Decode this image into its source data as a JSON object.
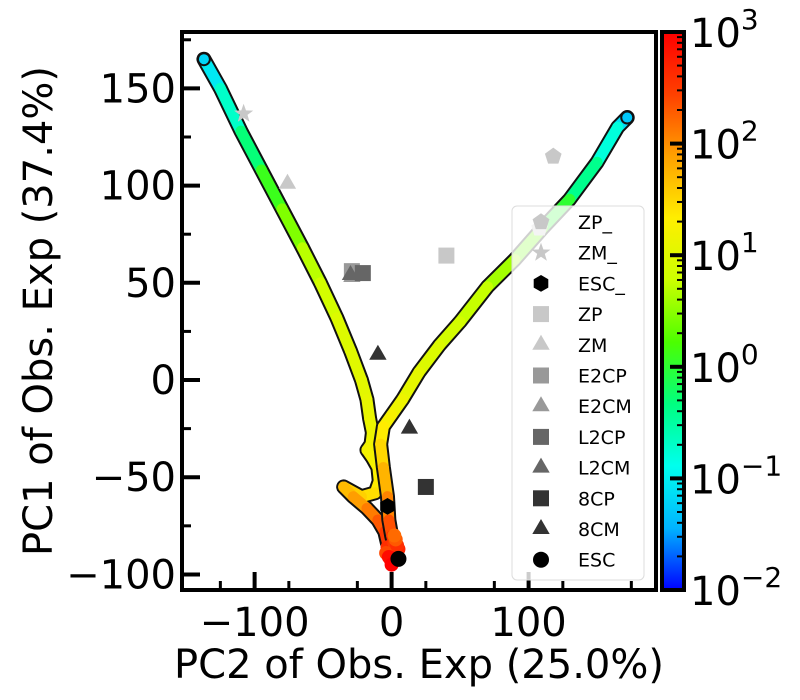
{
  "chart_data": {
    "type": "scatter",
    "title": "",
    "xlabel": "PC2 of Obs. Exp (25.0%)",
    "ylabel": "PC1 of Obs. Exp (37.4%)",
    "xlim": [
      -153,
      193
    ],
    "ylim": [
      -108,
      179
    ],
    "xticks": [
      -100,
      0,
      100
    ],
    "xtick_labels": [
      "−100",
      "0",
      "100"
    ],
    "yticks": [
      -100,
      -50,
      0,
      50,
      100,
      150
    ],
    "ytick_labels": [
      "−100",
      "−50",
      "0",
      "50",
      "100",
      "150"
    ],
    "grid": false,
    "legend_position": "lower-right",
    "colorbar": {
      "scale": "log",
      "range": [
        0.01,
        1000
      ],
      "colormap": [
        "#0000ff",
        "#00b4ff",
        "#00ffee",
        "#00ff80",
        "#4cff00",
        "#ccff00",
        "#ffee00",
        "#ffa000",
        "#ff4000",
        "#ff0000"
      ],
      "tick_values": [
        0.01,
        0.1,
        1,
        10,
        100,
        1000
      ],
      "tick_labels": [
        {
          "base": "10",
          "exp": "−2"
        },
        {
          "base": "10",
          "exp": "−1"
        },
        {
          "base": "10",
          "exp": "0"
        },
        {
          "base": "10",
          "exp": "1"
        },
        {
          "base": "10",
          "exp": "2"
        },
        {
          "base": "10",
          "exp": "3"
        }
      ]
    },
    "trajectory_branch_1": {
      "x": [
        -137,
        -125,
        -110,
        -95,
        -80,
        -65,
        -52,
        -40,
        -30,
        -22,
        -18,
        -16,
        -14,
        -15,
        -18,
        -14,
        -10,
        -9,
        -12,
        -22,
        -35,
        -28,
        -18,
        -10,
        -5,
        -3
      ],
      "y": [
        165,
        150,
        128,
        108,
        88,
        68,
        50,
        32,
        15,
        0,
        -10,
        -20,
        -27,
        -33,
        -36,
        -40,
        -45,
        -52,
        -58,
        -60,
        -55,
        -60,
        -66,
        -72,
        -78,
        -84
      ],
      "color_log10": [
        -1.2,
        -0.9,
        -0.5,
        -0.1,
        0.3,
        0.6,
        0.8,
        0.9,
        1.0,
        1.0,
        1.05,
        1.1,
        1.1,
        1.15,
        1.2,
        1.2,
        1.25,
        1.3,
        1.4,
        1.5,
        1.6,
        1.8,
        2.0,
        2.2,
        2.4,
        2.6
      ]
    },
    "trajectory_branch_2": {
      "x": [
        172,
        165,
        150,
        130,
        110,
        90,
        70,
        50,
        35,
        20,
        8,
        0,
        -6,
        -8,
        -6,
        -3,
        -2,
        0,
        2
      ],
      "y": [
        135,
        130,
        112,
        93,
        78,
        62,
        48,
        30,
        18,
        4,
        -10,
        -18,
        -24,
        -33,
        -45,
        -60,
        -72,
        -80,
        -86
      ],
      "color_log10": [
        -1.3,
        -1.0,
        -0.6,
        -0.2,
        0.2,
        0.5,
        0.7,
        0.8,
        0.9,
        1.0,
        1.1,
        1.2,
        1.3,
        1.4,
        1.6,
        1.9,
        2.2,
        2.5,
        2.7
      ]
    },
    "endpoint_cluster": {
      "x": [
        -3,
        0,
        3,
        2,
        -1,
        5,
        -4,
        1,
        4,
        -2,
        0,
        3,
        2
      ],
      "y": [
        -86,
        -88,
        -90,
        -84,
        -92,
        -87,
        -89,
        -93,
        -85,
        -91,
        -95,
        -82,
        -80
      ],
      "color_log10": [
        2.6,
        2.8,
        2.9,
        2.5,
        3.0,
        2.7,
        2.4,
        3.0,
        2.6,
        2.9,
        3.0,
        2.3,
        2.2
      ]
    },
    "series": [
      {
        "name": "ZP_",
        "marker": "pentagon",
        "color": "#c8c8c8",
        "points": [
          {
            "x": 118,
            "y": 115
          },
          {
            "x": 108,
            "y": 78
          }
        ]
      },
      {
        "name": "ZM_",
        "marker": "star",
        "color": "#c8c8c8",
        "points": [
          {
            "x": -108,
            "y": 137
          }
        ]
      },
      {
        "name": "ESC_",
        "marker": "hexagon",
        "color": "#000000",
        "points": [
          {
            "x": -3,
            "y": -65
          }
        ]
      },
      {
        "name": "ZP",
        "marker": "square",
        "color": "#c8c8c8",
        "points": [
          {
            "x": 40,
            "y": 64
          }
        ]
      },
      {
        "name": "ZM",
        "marker": "triangle",
        "color": "#c8c8c8",
        "points": [
          {
            "x": -76,
            "y": 101
          }
        ]
      },
      {
        "name": "E2CP",
        "marker": "square",
        "color": "#999999",
        "points": [
          {
            "x": -29,
            "y": 56
          }
        ]
      },
      {
        "name": "E2CM",
        "marker": "triangle",
        "color": "#999999",
        "points": [
          {
            "x": -29,
            "y": 53
          }
        ]
      },
      {
        "name": "L2CP",
        "marker": "square",
        "color": "#666666",
        "points": [
          {
            "x": -21,
            "y": 55
          }
        ]
      },
      {
        "name": "L2CM",
        "marker": "triangle",
        "color": "#666666",
        "points": [
          {
            "x": -30,
            "y": 54
          }
        ]
      },
      {
        "name": "8CP",
        "marker": "square",
        "color": "#333333",
        "points": [
          {
            "x": 25,
            "y": -55
          }
        ]
      },
      {
        "name": "8CM",
        "marker": "triangle",
        "color": "#333333",
        "points": [
          {
            "x": -10,
            "y": 13
          },
          {
            "x": 13,
            "y": -25
          }
        ]
      },
      {
        "name": "ESC",
        "marker": "circle",
        "color": "#000000",
        "points": [
          {
            "x": 5,
            "y": -92
          }
        ]
      }
    ]
  }
}
